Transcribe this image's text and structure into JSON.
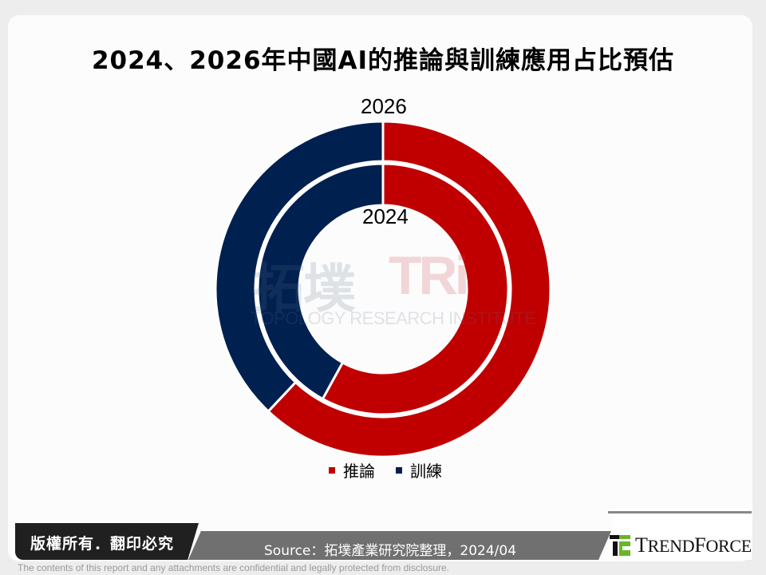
{
  "title": "2024、2026年中國AI的推論與訓練應用占比預估",
  "chart_data": {
    "type": "pie",
    "subtype": "doughnut (nested rings)",
    "title": "2024、2026年中國AI的推論與訓練應用占比預估",
    "categories": [
      "推論",
      "訓練"
    ],
    "series": [
      {
        "name": "2024",
        "ring": "inner",
        "values": [
          58,
          42
        ]
      },
      {
        "name": "2026",
        "ring": "outer",
        "values": [
          62,
          38
        ]
      }
    ],
    "colors": {
      "推論": "#c00000",
      "訓練": "#002050"
    },
    "legend_position": "bottom",
    "ring_labels": [
      "2026",
      "2024"
    ],
    "unit": "%"
  },
  "ring_labels": {
    "outer": "2026",
    "inner": "2024"
  },
  "legend": [
    {
      "label": "推論",
      "color": "#c00000"
    },
    {
      "label": "訓練",
      "color": "#002050"
    }
  ],
  "watermark": {
    "cn": "拓墣",
    "tri": "TRi",
    "en": "TOPOLOGY RESEARCH INSTITUTE"
  },
  "footer": {
    "copyright": "版權所有．翻印必究",
    "source": "Source：拓墣產業研究院整理，2024/04",
    "logo_text_T": "T",
    "logo_text_rest1": "REND",
    "logo_text_F": "F",
    "logo_text_rest2": "ORCE",
    "disclaimer": "The contents of this report and any attachments are confidential and legally protected from disclosure."
  }
}
